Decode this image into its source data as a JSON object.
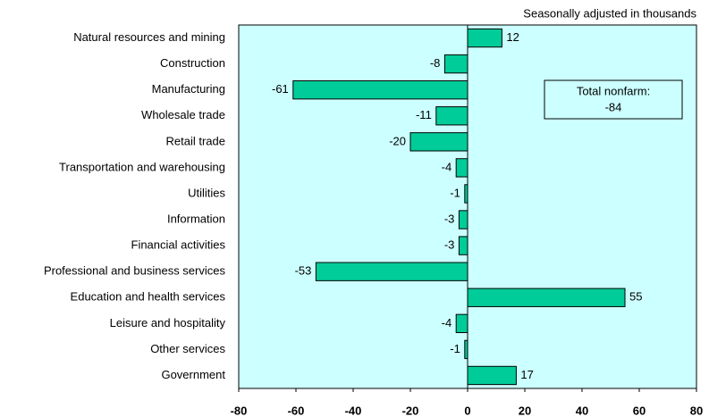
{
  "chart_data": {
    "type": "hbar",
    "subtitle": "Seasonally adjusted in thousands",
    "categories": [
      "Natural resources and mining",
      "Construction",
      "Manufacturing",
      "Wholesale trade",
      "Retail trade",
      "Transportation and warehousing",
      "Utilities",
      "Information",
      "Financial activities",
      "Professional and business services",
      "Education and health services",
      "Leisure and hospitality",
      "Other services",
      "Government"
    ],
    "values": [
      12,
      -8,
      -61,
      -11,
      -20,
      -4,
      -1,
      -3,
      -3,
      -53,
      55,
      -4,
      -1,
      17
    ],
    "color": "#00cc99",
    "background": "#ccffff",
    "xlim": [
      -80,
      80
    ],
    "xticks": [
      -80,
      -60,
      -40,
      -20,
      0,
      20,
      40,
      60,
      80
    ],
    "annotation": {
      "label": "Total nonfarm:",
      "value": -84
    }
  }
}
